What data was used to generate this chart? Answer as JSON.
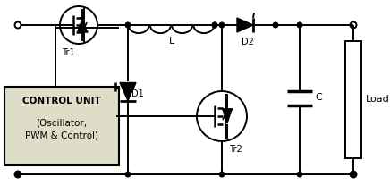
{
  "bg_color": "#ffffff",
  "box_fill": "#ddddc8",
  "box_text1": "CONTROL UNIT",
  "box_text2": "(Oscillator,",
  "box_text3": "PWM & Control)",
  "label_Tr1": "Tr1",
  "label_Tr2": "Tr2",
  "label_D1": "D1",
  "label_D2": "D2",
  "label_L": "L",
  "label_C": "C",
  "label_Load": "Load",
  "figsize": [
    4.36,
    2.17
  ],
  "dpi": 100
}
